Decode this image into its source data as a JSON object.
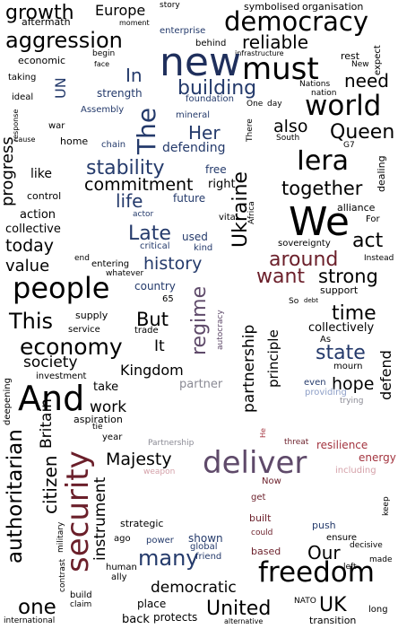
{
  "words": {
    "growth": "growth",
    "Europe": "Europe",
    "story": "story",
    "symbolised": "symbolised",
    "organisation": "organisation",
    "aftermath": "aftermath",
    "moment": "moment",
    "democracy": "democracy",
    "aggression": "aggression",
    "enterprise": "enterprise",
    "behind": "behind",
    "reliable": "reliable",
    "infrastructure": "infrastructure",
    "economic": "economic",
    "begin": "begin",
    "face": "face",
    "new": "new",
    "must": "must",
    "rest": "rest",
    "New": "New",
    "expect": "expect",
    "taking": "taking",
    "UN": "UN",
    "In": "In",
    "need": "need",
    "Nations": "Nations",
    "nation": "nation",
    "ideal": "ideal",
    "strength": "strength",
    "building": "building",
    "world": "world",
    "Assembly": "Assembly",
    "response": "response",
    "mineral": "mineral",
    "One": "One",
    "day": "day",
    "progress": "progress",
    "war": "war",
    "foundation": "foundation",
    "The": "The",
    "Her": "Her",
    "also": "also",
    "Queen": "Queen",
    "cause": "cause",
    "home": "home",
    "chain": "chain",
    "defending": "defending",
    "South": "South",
    "G7": "G7",
    "There": "There",
    "Iera": "Iera",
    "stability": "stability",
    "like": "like",
    "free": "free",
    "dealing": "dealing",
    "commitment": "commitment",
    "right": "right",
    "together": "together",
    "control": "control",
    "life": "life",
    "future": "future",
    "Africa": "Africa",
    "action": "action",
    "actor": "actor",
    "vital": "vital",
    "alliance": "alliance",
    "collective": "collective",
    "Ukraine": "Ukraine",
    "We": "We",
    "For": "For",
    "Late": "Late",
    "used": "used",
    "kind": "kind",
    "today": "today",
    "critical": "critical",
    "sovereignty": "sovereignty",
    "act": "act",
    "value": "value",
    "end": "end",
    "history": "history",
    "Instead": "Instead",
    "around": "around",
    "entering": "entering",
    "whatever": "whatever",
    "strong": "strong",
    "people": "people",
    "country": "country",
    "regime": "regime",
    "want": "want",
    "support": "support",
    "65": "65",
    "So": "So",
    "debt": "debt",
    "This": "This",
    "supply": "supply",
    "But": "But",
    "autocracy": "autocracy",
    "partnership": "partnership",
    "time": "time",
    "service": "service",
    "trade": "trade",
    "collectively": "collectively",
    "economy": "economy",
    "It": "It",
    "As": "As",
    "principle": "principle",
    "state": "state",
    "society": "society",
    "Kingdom": "Kingdom",
    "mourn": "mourn",
    "investment": "investment",
    "partner": "partner",
    "hope": "hope",
    "defend": "defend",
    "deepening": "deepening",
    "And": "And",
    "take": "take",
    "even": "even",
    "providing": "providing",
    "work": "work",
    "trying": "trying",
    "aspiration": "aspiration",
    "tie": "tie",
    "year": "year",
    "He": "He",
    "authoritarian": "authoritarian",
    "citizen": "citizen",
    "Britain": "Britain",
    "security": "security",
    "Partnership": "Partnership",
    "threat": "threat",
    "resilience": "resilience",
    "energy": "energy",
    "Majesty": "Majesty",
    "deliver": "deliver",
    "weapon": "weapon",
    "including": "including",
    "Now": "Now",
    "military": "military",
    "keep": "keep",
    "get": "get",
    "instrument": "instrument",
    "strategic": "strategic",
    "built": "built",
    "push": "push",
    "ago": "ago",
    "shown": "shown",
    "power": "power",
    "ensure": "ensure",
    "could": "could",
    "decisive": "decisive",
    "based": "based",
    "Our": "Our",
    "global": "global",
    "friend": "friend",
    "many": "many",
    "human": "human",
    "made": "made",
    "left": "left",
    "ally": "ally",
    "freedom": "freedom",
    "contrast": "contrast",
    "democratic": "democratic",
    "build": "build",
    "one": "one",
    "place": "place",
    "claim": "claim",
    "UK": "UK",
    "NATO": "NATO",
    "United": "United",
    "long": "long",
    "back": "back",
    "protects": "protects",
    "international": "international",
    "alternative": "alternative",
    "transition": "transition"
  },
  "palette": {
    "black": "#000000",
    "navy": "#243a6b",
    "indigo": "#1f2f5c",
    "plum": "#5f4a6a",
    "maroon": "#6b1f2a",
    "gray": "#8a8a94",
    "pink": "#d4a0a8",
    "light_blue": "#8fa0c8",
    "red": "#a3343f"
  }
}
